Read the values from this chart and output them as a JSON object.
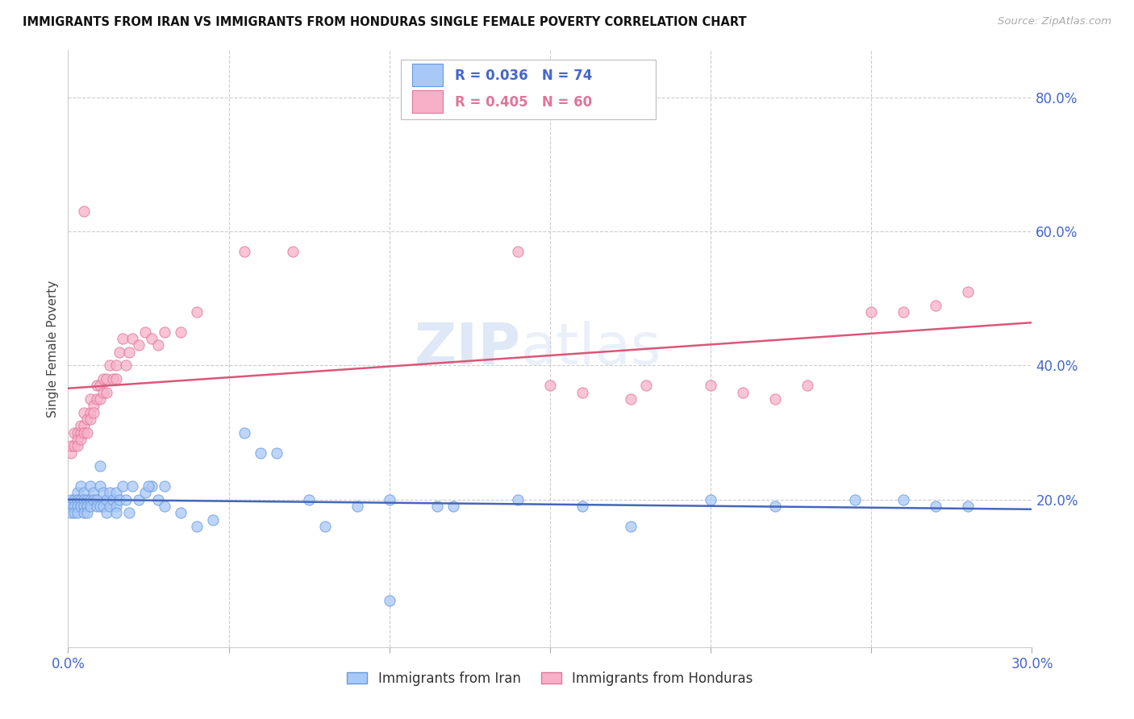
{
  "title": "IMMIGRANTS FROM IRAN VS IMMIGRANTS FROM HONDURAS SINGLE FEMALE POVERTY CORRELATION CHART",
  "source": "Source: ZipAtlas.com",
  "ylabel": "Single Female Poverty",
  "legend_label1": "Immigrants from Iran",
  "legend_label2": "Immigrants from Honduras",
  "R1": "0.036",
  "N1": "74",
  "R2": "0.405",
  "N2": "60",
  "color1": "#a8c8f8",
  "color2": "#f8b0c8",
  "edge_color1": "#6699dd",
  "edge_color2": "#dd7799",
  "line_color1": "#4466bb",
  "line_color2": "#dd5577",
  "axis_color": "#4466cc",
  "xlim": [
    0.0,
    0.3
  ],
  "ylim": [
    -0.02,
    0.87
  ],
  "ytick_vals": [
    0.2,
    0.4,
    0.6,
    0.8
  ],
  "ytick_labels": [
    "20.0%",
    "40.0%",
    "60.0%",
    "80.0%"
  ],
  "xtick_vals": [
    0.0,
    0.05,
    0.1,
    0.15,
    0.2,
    0.25,
    0.3
  ],
  "xtick_labels": [
    "0.0%",
    "",
    "",
    "",
    "",
    "",
    "30.0%"
  ],
  "iran_x": [
    0.001,
    0.001,
    0.001,
    0.002,
    0.002,
    0.002,
    0.003,
    0.003,
    0.003,
    0.003,
    0.004,
    0.004,
    0.004,
    0.005,
    0.005,
    0.005,
    0.005,
    0.006,
    0.006,
    0.006,
    0.007,
    0.007,
    0.007,
    0.008,
    0.008,
    0.009,
    0.009,
    0.01,
    0.01,
    0.011,
    0.011,
    0.012,
    0.012,
    0.013,
    0.013,
    0.014,
    0.015,
    0.015,
    0.016,
    0.017,
    0.018,
    0.019,
    0.02,
    0.022,
    0.024,
    0.026,
    0.028,
    0.03,
    0.035,
    0.04,
    0.045,
    0.055,
    0.06,
    0.075,
    0.09,
    0.1,
    0.115,
    0.14,
    0.16,
    0.175,
    0.2,
    0.22,
    0.245,
    0.26,
    0.27,
    0.28,
    0.1,
    0.12,
    0.08,
    0.065,
    0.03,
    0.025,
    0.015,
    0.01
  ],
  "iran_y": [
    0.2,
    0.19,
    0.18,
    0.2,
    0.19,
    0.18,
    0.21,
    0.2,
    0.19,
    0.18,
    0.22,
    0.2,
    0.19,
    0.21,
    0.2,
    0.19,
    0.18,
    0.2,
    0.19,
    0.18,
    0.22,
    0.2,
    0.19,
    0.21,
    0.2,
    0.2,
    0.19,
    0.22,
    0.19,
    0.21,
    0.19,
    0.2,
    0.18,
    0.21,
    0.19,
    0.2,
    0.21,
    0.19,
    0.2,
    0.22,
    0.2,
    0.18,
    0.22,
    0.2,
    0.21,
    0.22,
    0.2,
    0.19,
    0.18,
    0.16,
    0.17,
    0.3,
    0.27,
    0.2,
    0.19,
    0.05,
    0.19,
    0.2,
    0.19,
    0.16,
    0.2,
    0.19,
    0.2,
    0.2,
    0.19,
    0.19,
    0.2,
    0.19,
    0.16,
    0.27,
    0.22,
    0.22,
    0.18,
    0.25
  ],
  "honduras_x": [
    0.001,
    0.001,
    0.002,
    0.002,
    0.003,
    0.003,
    0.003,
    0.004,
    0.004,
    0.004,
    0.005,
    0.005,
    0.005,
    0.006,
    0.006,
    0.007,
    0.007,
    0.007,
    0.008,
    0.008,
    0.009,
    0.009,
    0.01,
    0.01,
    0.011,
    0.011,
    0.012,
    0.012,
    0.013,
    0.014,
    0.015,
    0.015,
    0.016,
    0.017,
    0.018,
    0.019,
    0.02,
    0.022,
    0.024,
    0.026,
    0.028,
    0.03,
    0.035,
    0.04,
    0.055,
    0.07,
    0.14,
    0.15,
    0.16,
    0.175,
    0.18,
    0.2,
    0.21,
    0.22,
    0.23,
    0.25,
    0.26,
    0.27,
    0.28,
    0.005
  ],
  "honduras_y": [
    0.27,
    0.28,
    0.3,
    0.28,
    0.3,
    0.29,
    0.28,
    0.3,
    0.29,
    0.31,
    0.33,
    0.31,
    0.3,
    0.32,
    0.3,
    0.35,
    0.33,
    0.32,
    0.34,
    0.33,
    0.37,
    0.35,
    0.37,
    0.35,
    0.38,
    0.36,
    0.38,
    0.36,
    0.4,
    0.38,
    0.4,
    0.38,
    0.42,
    0.44,
    0.4,
    0.42,
    0.44,
    0.43,
    0.45,
    0.44,
    0.43,
    0.45,
    0.45,
    0.48,
    0.57,
    0.57,
    0.57,
    0.37,
    0.36,
    0.35,
    0.37,
    0.37,
    0.36,
    0.35,
    0.37,
    0.48,
    0.48,
    0.49,
    0.51,
    0.63
  ]
}
